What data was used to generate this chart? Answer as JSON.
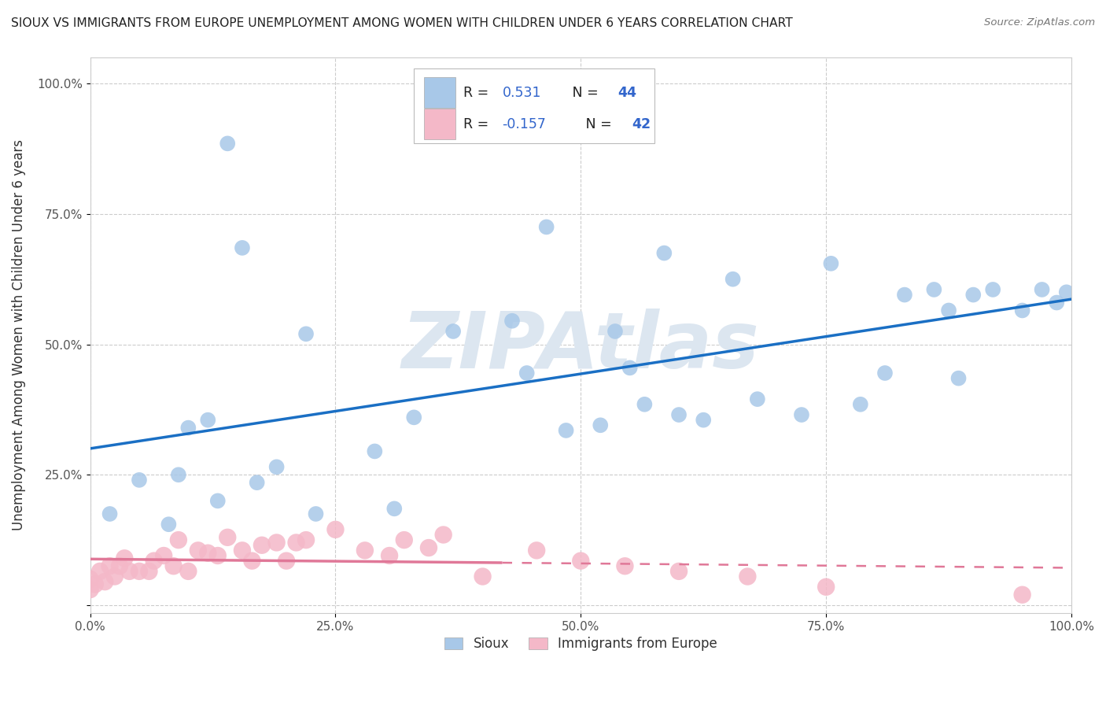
{
  "title": "SIOUX VS IMMIGRANTS FROM EUROPE UNEMPLOYMENT AMONG WOMEN WITH CHILDREN UNDER 6 YEARS CORRELATION CHART",
  "source": "Source: ZipAtlas.com",
  "ylabel": "Unemployment Among Women with Children Under 6 years",
  "xlim": [
    0.0,
    1.0
  ],
  "ylim": [
    -0.015,
    1.05
  ],
  "xticks": [
    0.0,
    0.25,
    0.5,
    0.75,
    1.0
  ],
  "xtick_labels": [
    "0.0%",
    "25.0%",
    "50.0%",
    "75.0%",
    "100.0%"
  ],
  "ytick_labels": [
    "",
    "25.0%",
    "50.0%",
    "75.0%",
    "100.0%"
  ],
  "sioux_color": "#a8c8e8",
  "immigrants_color": "#f4b8c8",
  "sioux_R": "0.531",
  "sioux_N": "44",
  "immigrants_R": "-0.157",
  "immigrants_N": "42",
  "trend_blue": "#1a6fc4",
  "trend_pink": "#e07898",
  "watermark": "ZIPAtlas",
  "watermark_color": "#dce6f0",
  "legend_label_sioux": "Sioux",
  "legend_label_immigrants": "Immigrants from Europe",
  "blue_text_color": "#3366cc",
  "sioux_x": [
    0.02,
    0.05,
    0.08,
    0.09,
    0.1,
    0.12,
    0.13,
    0.14,
    0.155,
    0.17,
    0.19,
    0.22,
    0.23,
    0.29,
    0.31,
    0.33,
    0.37,
    0.43,
    0.445,
    0.465,
    0.485,
    0.52,
    0.535,
    0.55,
    0.565,
    0.585,
    0.6,
    0.625,
    0.655,
    0.68,
    0.725,
    0.755,
    0.785,
    0.81,
    0.83,
    0.86,
    0.875,
    0.885,
    0.9,
    0.92,
    0.95,
    0.97,
    0.985,
    0.995
  ],
  "sioux_y": [
    0.175,
    0.24,
    0.155,
    0.25,
    0.34,
    0.355,
    0.2,
    0.885,
    0.685,
    0.235,
    0.265,
    0.52,
    0.175,
    0.295,
    0.185,
    0.36,
    0.525,
    0.545,
    0.445,
    0.725,
    0.335,
    0.345,
    0.525,
    0.455,
    0.385,
    0.675,
    0.365,
    0.355,
    0.625,
    0.395,
    0.365,
    0.655,
    0.385,
    0.445,
    0.595,
    0.605,
    0.565,
    0.435,
    0.595,
    0.605,
    0.565,
    0.605,
    0.58,
    0.6
  ],
  "immigrants_x": [
    0.0,
    0.0,
    0.005,
    0.01,
    0.015,
    0.02,
    0.025,
    0.03,
    0.035,
    0.04,
    0.05,
    0.06,
    0.065,
    0.075,
    0.085,
    0.09,
    0.1,
    0.11,
    0.12,
    0.13,
    0.14,
    0.155,
    0.165,
    0.175,
    0.19,
    0.2,
    0.21,
    0.22,
    0.25,
    0.28,
    0.305,
    0.32,
    0.345,
    0.36,
    0.4,
    0.455,
    0.5,
    0.545,
    0.6,
    0.67,
    0.75,
    0.95
  ],
  "immigrants_y": [
    0.03,
    0.05,
    0.04,
    0.065,
    0.045,
    0.075,
    0.055,
    0.075,
    0.09,
    0.065,
    0.065,
    0.065,
    0.085,
    0.095,
    0.075,
    0.125,
    0.065,
    0.105,
    0.1,
    0.095,
    0.13,
    0.105,
    0.085,
    0.115,
    0.12,
    0.085,
    0.12,
    0.125,
    0.145,
    0.105,
    0.095,
    0.125,
    0.11,
    0.135,
    0.055,
    0.105,
    0.085,
    0.075,
    0.065,
    0.055,
    0.035,
    0.02
  ]
}
